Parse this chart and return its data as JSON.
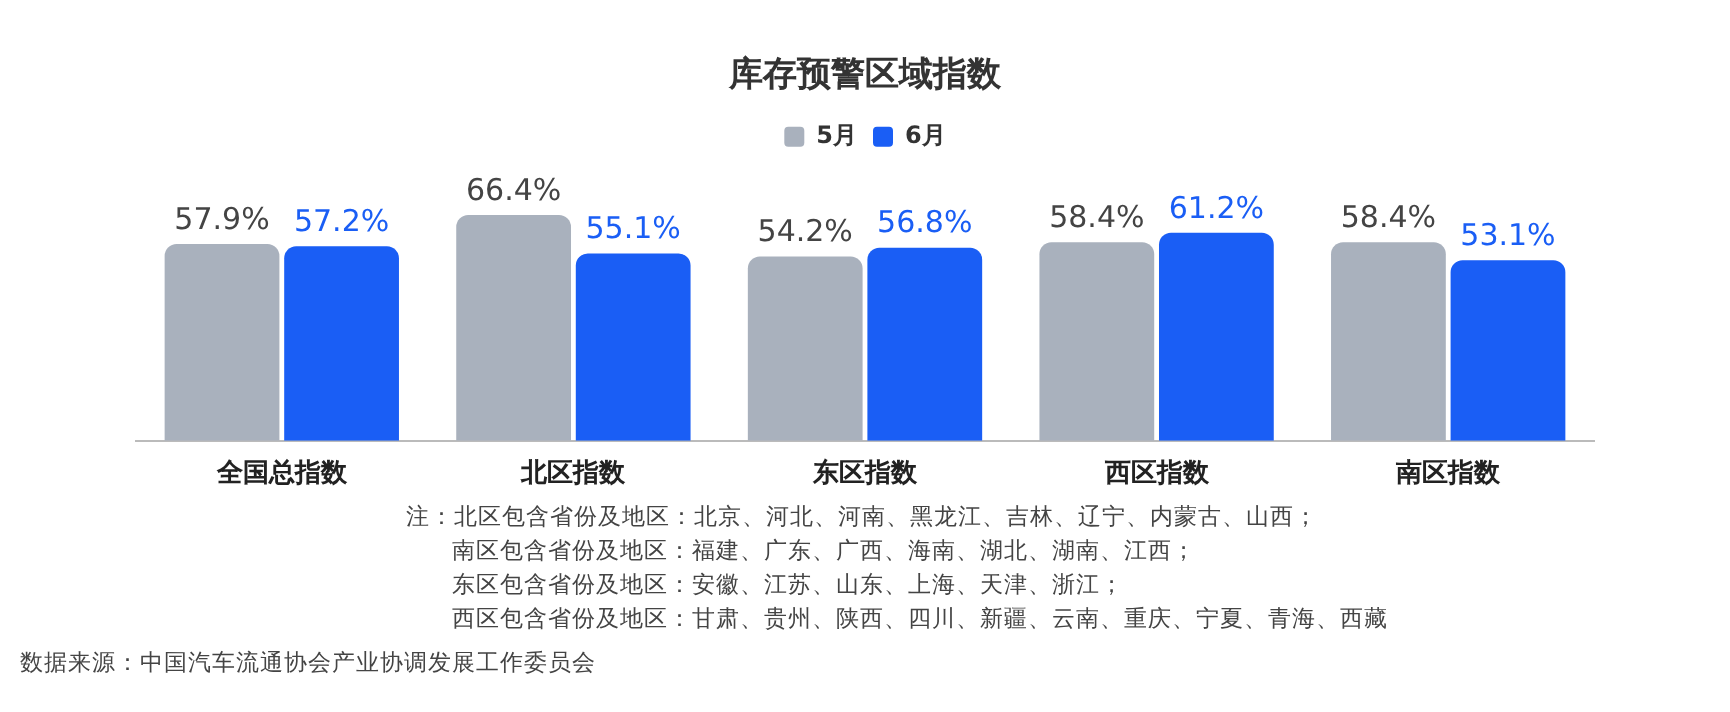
{
  "chart_data": {
    "type": "bar",
    "title": "库存预警区域指数",
    "categories": [
      "全国总指数",
      "北区指数",
      "东区指数",
      "西区指数",
      "南区指数"
    ],
    "series": [
      {
        "name": "5月",
        "color": "#a9b1bd",
        "values": [
          57.9,
          66.4,
          54.2,
          58.4,
          58.4
        ],
        "value_labels": [
          "57.9%",
          "66.4%",
          "54.2%",
          "58.4%",
          "58.4%"
        ]
      },
      {
        "name": "6月",
        "color": "#1a5ef5",
        "values": [
          57.2,
          55.1,
          56.8,
          61.2,
          53.1
        ],
        "value_labels": [
          "57.2%",
          "55.1%",
          "56.8%",
          "61.2%",
          "53.1%"
        ]
      }
    ],
    "legend": "top",
    "grid": false,
    "annotations": [
      "注：北区包含省份及地区：北京、河北、河南、黑龙江、吉林、辽宁、内蒙古、山西；",
      "南区包含省份及地区：福建、广东、广西、海南、湖北、湖南、江西；",
      "东区包含省份及地区：安徽、江苏、山东、上海、天津、浙江；",
      "西区包含省份及地区：甘肃、贵州、陕西、四川、新疆、云南、重庆、宁夏、青海、西藏",
      "数据来源：中国汽车流通协会产业协调发展工作委员会"
    ]
  }
}
